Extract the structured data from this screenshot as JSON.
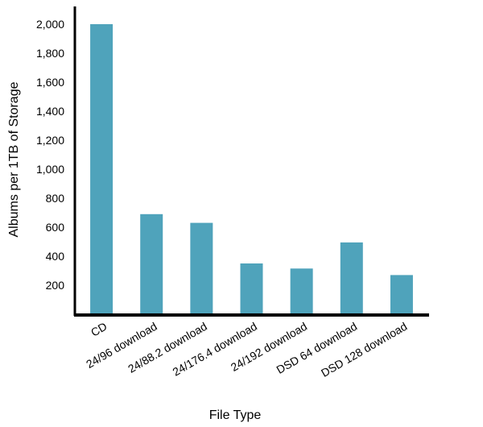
{
  "chart_data": {
    "type": "bar",
    "categories": [
      "CD",
      "24/96 download",
      "24/88.2 download",
      "24/176.4 download",
      "24/192 download",
      "DSD 64 download",
      "DSD 128 download"
    ],
    "values": [
      2000,
      690,
      630,
      350,
      315,
      495,
      270
    ],
    "title": "",
    "xlabel": "File Type",
    "ylabel": "Albums per 1TB of Storage",
    "ylim": [
      0,
      2000
    ],
    "yticks": [
      200,
      400,
      600,
      800,
      1000,
      1200,
      1400,
      1600,
      1800,
      2000
    ],
    "ytick_labels": [
      "200",
      "400",
      "600",
      "800",
      "1,000",
      "1,200",
      "1,400",
      "1,600",
      "1,800",
      "2,000"
    ],
    "grid": false,
    "legend": "none",
    "bar_color": "#4fa3bb"
  }
}
